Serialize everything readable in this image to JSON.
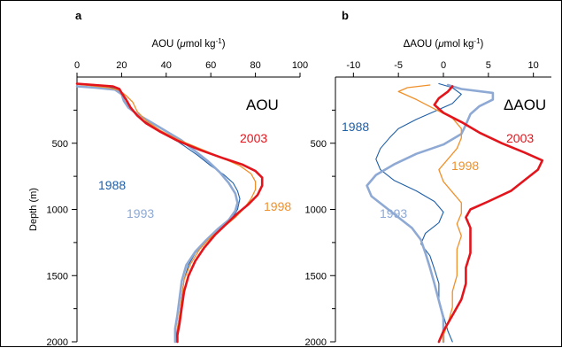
{
  "chart_data": [
    {
      "panel_label": "a",
      "type": "line",
      "xlabel_pre": "AOU (",
      "xlabel_mu": "μ",
      "xlabel_post": "mol kg",
      "xlabel_sup": "-1",
      "xlabel_close": ")",
      "ylabel": "Depth (m)",
      "xlim": [
        0,
        100
      ],
      "ylim": [
        2000,
        0
      ],
      "xaxis_position": "top",
      "grid": false,
      "in_plot_label": "AOU",
      "x_ticks": [
        0,
        20,
        40,
        60,
        80,
        100
      ],
      "y_ticks": [
        500,
        1000,
        1500,
        2000
      ],
      "series": [
        {
          "name": "1988",
          "color": "#1f5fa8",
          "stroke_width": 1.1,
          "points": [
            [
              0,
              50
            ],
            [
              6,
              60
            ],
            [
              14,
              75
            ],
            [
              18,
              90
            ],
            [
              20,
              130
            ],
            [
              23,
              200
            ],
            [
              26,
              270
            ],
            [
              30,
              330
            ],
            [
              36,
              390
            ],
            [
              42,
              450
            ],
            [
              48,
              520
            ],
            [
              54,
              590
            ],
            [
              60,
              670
            ],
            [
              66,
              740
            ],
            [
              70,
              800
            ],
            [
              72,
              860
            ],
            [
              73,
              920
            ],
            [
              72,
              1000
            ],
            [
              69,
              1080
            ],
            [
              64,
              1160
            ],
            [
              58,
              1240
            ],
            [
              53,
              1330
            ],
            [
              50,
              1420
            ],
            [
              48,
              1530
            ],
            [
              47,
              1660
            ],
            [
              46,
              1800
            ],
            [
              45,
              1900
            ],
            [
              44,
              2000
            ]
          ]
        },
        {
          "name": "1993",
          "color": "#8ea9d4",
          "stroke_width": 2.6,
          "points": [
            [
              0,
              70
            ],
            [
              8,
              80
            ],
            [
              17,
              95
            ],
            [
              20,
              130
            ],
            [
              21,
              180
            ],
            [
              23,
              230
            ],
            [
              27,
              280
            ],
            [
              33,
              340
            ],
            [
              40,
              410
            ],
            [
              47,
              480
            ],
            [
              53,
              560
            ],
            [
              59,
              640
            ],
            [
              64,
              720
            ],
            [
              68,
              800
            ],
            [
              71,
              880
            ],
            [
              72,
              950
            ],
            [
              71,
              1010
            ],
            [
              68,
              1080
            ],
            [
              63,
              1150
            ],
            [
              58,
              1230
            ],
            [
              53,
              1320
            ],
            [
              49,
              1420
            ],
            [
              47,
              1540
            ],
            [
              46,
              1670
            ],
            [
              45,
              1800
            ],
            [
              44,
              1900
            ],
            [
              44,
              2000
            ]
          ]
        },
        {
          "name": "1998",
          "color": "#f0902a",
          "stroke_width": 1.3,
          "points": [
            [
              0,
              55
            ],
            [
              6,
              65
            ],
            [
              14,
              80
            ],
            [
              19,
              100
            ],
            [
              22,
              140
            ],
            [
              25,
              190
            ],
            [
              27,
              260
            ],
            [
              31,
              330
            ],
            [
              37,
              400
            ],
            [
              45,
              470
            ],
            [
              55,
              540
            ],
            [
              65,
              610
            ],
            [
              73,
              670
            ],
            [
              78,
              730
            ],
            [
              80,
              790
            ],
            [
              80,
              850
            ],
            [
              78,
              920
            ],
            [
              75,
              990
            ],
            [
              71,
              1060
            ],
            [
              66,
              1130
            ],
            [
              60,
              1210
            ],
            [
              55,
              1300
            ],
            [
              51,
              1410
            ],
            [
              48,
              1530
            ],
            [
              47,
              1670
            ],
            [
              46,
              1800
            ],
            [
              45,
              1900
            ],
            [
              45,
              2000
            ]
          ]
        },
        {
          "name": "2003",
          "color": "#e3141b",
          "stroke_width": 2.6,
          "points": [
            [
              0,
              50
            ],
            [
              8,
              60
            ],
            [
              16,
              70
            ],
            [
              19,
              90
            ],
            [
              20,
              120
            ],
            [
              22,
              170
            ],
            [
              24,
              230
            ],
            [
              27,
              290
            ],
            [
              31,
              350
            ],
            [
              37,
              410
            ],
            [
              45,
              480
            ],
            [
              55,
              550
            ],
            [
              65,
              610
            ],
            [
              74,
              660
            ],
            [
              80,
              710
            ],
            [
              83,
              760
            ],
            [
              83,
              820
            ],
            [
              81,
              890
            ],
            [
              77,
              960
            ],
            [
              72,
              1030
            ],
            [
              67,
              1110
            ],
            [
              62,
              1190
            ],
            [
              57,
              1290
            ],
            [
              53,
              1390
            ],
            [
              50,
              1500
            ],
            [
              48,
              1620
            ],
            [
              47,
              1740
            ],
            [
              46,
              1860
            ],
            [
              45,
              1950
            ],
            [
              45,
              2000
            ]
          ]
        }
      ]
    },
    {
      "panel_label": "b",
      "type": "line",
      "xlabel_pre": "ΔAOU (",
      "xlabel_mu": "μ",
      "xlabel_post": "mol kg",
      "xlabel_sup": "-1",
      "xlabel_close": ")",
      "ylabel": "",
      "xlim": [
        -12,
        12
      ],
      "ylim": [
        2000,
        0
      ],
      "xaxis_position": "top",
      "grid": false,
      "in_plot_label": "ΔAOU",
      "x_ticks": [
        -10,
        -5,
        0,
        5,
        10
      ],
      "y_ticks": [
        500,
        1000,
        1500,
        2000
      ],
      "series": [
        {
          "name": "1988",
          "color": "#1f5fa8",
          "stroke_width": 1.1,
          "points": [
            [
              -0.5,
              50
            ],
            [
              1,
              80
            ],
            [
              2,
              130
            ],
            [
              1,
              200
            ],
            [
              -1,
              260
            ],
            [
              -3,
              320
            ],
            [
              -5,
              390
            ],
            [
              -6,
              460
            ],
            [
              -7,
              540
            ],
            [
              -7.5,
              620
            ],
            [
              -7,
              700
            ],
            [
              -5.5,
              780
            ],
            [
              -3,
              860
            ],
            [
              -1,
              940
            ],
            [
              0,
              1020
            ],
            [
              -0.5,
              1100
            ],
            [
              -2,
              1180
            ],
            [
              -2.5,
              1260
            ],
            [
              -1.5,
              1350
            ],
            [
              -1,
              1450
            ],
            [
              -0.5,
              1560
            ],
            [
              -0.5,
              1680
            ],
            [
              0,
              1800
            ],
            [
              0.5,
              1920
            ],
            [
              1,
              2000
            ]
          ]
        },
        {
          "name": "1993",
          "color": "#8ea9d4",
          "stroke_width": 2.6,
          "points": [
            [
              0.5,
              60
            ],
            [
              2,
              90
            ],
            [
              5.5,
              120
            ],
            [
              5.5,
              170
            ],
            [
              4,
              220
            ],
            [
              3,
              280
            ],
            [
              2.5,
              360
            ],
            [
              2,
              430
            ],
            [
              0,
              510
            ],
            [
              -3,
              580
            ],
            [
              -5.5,
              660
            ],
            [
              -7.5,
              740
            ],
            [
              -8.5,
              820
            ],
            [
              -8,
              900
            ],
            [
              -6.5,
              980
            ],
            [
              -5,
              1060
            ],
            [
              -3.5,
              1140
            ],
            [
              -2.5,
              1230
            ],
            [
              -2,
              1330
            ],
            [
              -1.5,
              1440
            ],
            [
              -1,
              1560
            ],
            [
              -0.5,
              1690
            ],
            [
              0,
              1820
            ],
            [
              0,
              1950
            ],
            [
              0,
              2000
            ]
          ]
        },
        {
          "name": "1998",
          "color": "#f0902a",
          "stroke_width": 1.3,
          "points": [
            [
              -1.5,
              60
            ],
            [
              -4,
              80
            ],
            [
              -5,
              110
            ],
            [
              -3,
              170
            ],
            [
              -1,
              240
            ],
            [
              1,
              310
            ],
            [
              2,
              390
            ],
            [
              2,
              460
            ],
            [
              1.5,
              540
            ],
            [
              0.5,
              620
            ],
            [
              -0.5,
              700
            ],
            [
              0,
              790
            ],
            [
              1,
              870
            ],
            [
              2,
              950
            ],
            [
              2,
              1030
            ],
            [
              1.5,
              1110
            ],
            [
              2,
              1200
            ],
            [
              1.5,
              1300
            ],
            [
              1.5,
              1400
            ],
            [
              1.5,
              1500
            ],
            [
              1,
              1620
            ],
            [
              1,
              1740
            ],
            [
              0.5,
              1860
            ],
            [
              0,
              1950
            ],
            [
              0,
              2000
            ]
          ]
        },
        {
          "name": "2003",
          "color": "#e3141b",
          "stroke_width": 2.6,
          "points": [
            [
              1,
              70
            ],
            [
              0.5,
              110
            ],
            [
              -0.5,
              160
            ],
            [
              -1,
              210
            ],
            [
              0,
              270
            ],
            [
              2,
              340
            ],
            [
              4,
              420
            ],
            [
              6.5,
              500
            ],
            [
              9,
              570
            ],
            [
              11,
              630
            ],
            [
              10.5,
              700
            ],
            [
              9,
              780
            ],
            [
              7.5,
              860
            ],
            [
              5,
              940
            ],
            [
              3,
              1000
            ],
            [
              2.5,
              1060
            ],
            [
              3,
              1140
            ],
            [
              3,
              1230
            ],
            [
              3,
              1330
            ],
            [
              2.5,
              1440
            ],
            [
              2.5,
              1560
            ],
            [
              2,
              1680
            ],
            [
              1,
              1800
            ],
            [
              0,
              1920
            ],
            [
              -0.5,
              2000
            ]
          ]
        }
      ]
    }
  ]
}
